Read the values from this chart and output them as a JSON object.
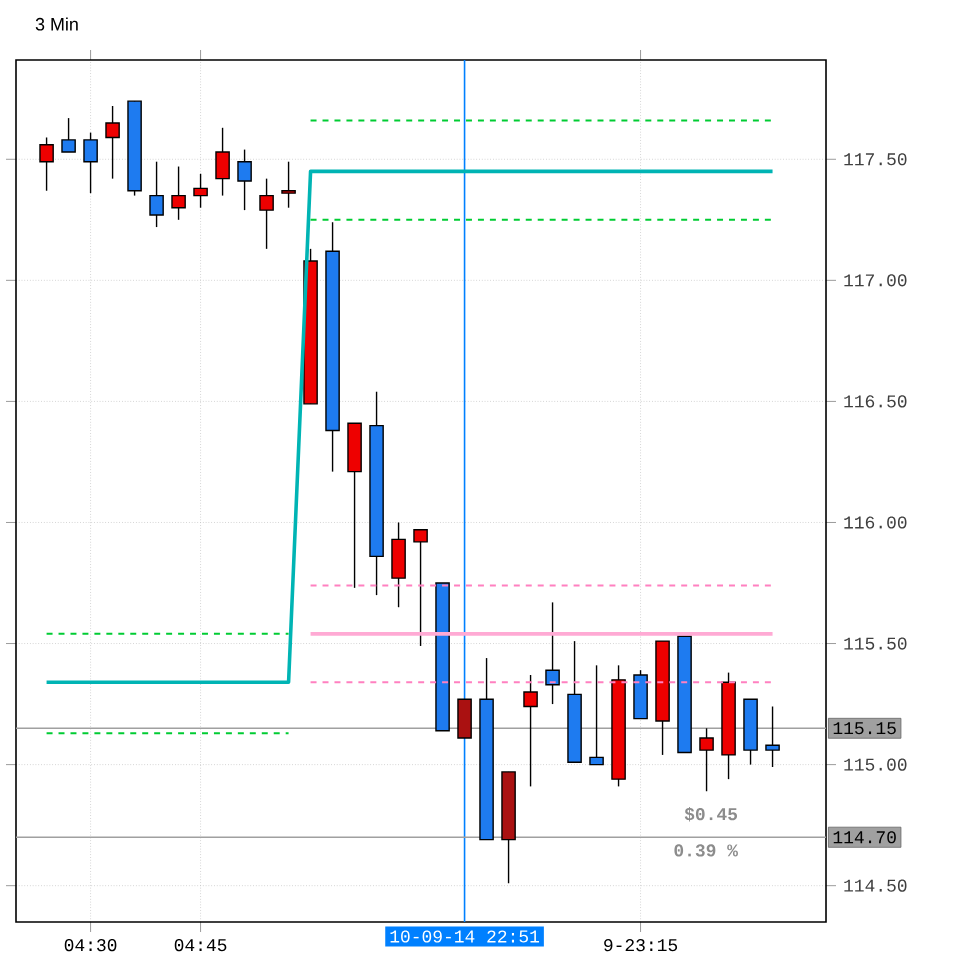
{
  "chart_data": {
    "type": "candlestick",
    "title": "3 Min",
    "categories": [
      null,
      null,
      "04:30",
      null,
      null,
      null,
      null,
      "04:45",
      null,
      null,
      null,
      null,
      null,
      null,
      null,
      null,
      null,
      null,
      null,
      "10-09-14 22:51",
      null,
      null,
      null,
      null,
      null,
      null,
      null,
      "9-23:15",
      null,
      null,
      null,
      null,
      null,
      null
    ],
    "ohlc": [
      [
        117.49,
        117.59,
        117.37,
        117.56
      ],
      [
        117.58,
        117.67,
        117.53,
        117.53
      ],
      [
        117.58,
        117.61,
        117.36,
        117.49
      ],
      [
        117.59,
        117.72,
        117.42,
        117.65
      ],
      [
        117.74,
        117.74,
        117.35,
        117.37
      ],
      [
        117.35,
        117.49,
        117.22,
        117.27
      ],
      [
        117.3,
        117.47,
        117.25,
        117.35
      ],
      [
        117.35,
        117.44,
        117.3,
        117.38
      ],
      [
        117.42,
        117.63,
        117.35,
        117.53
      ],
      [
        117.49,
        117.54,
        117.29,
        117.41
      ],
      [
        117.29,
        117.42,
        117.13,
        117.35
      ],
      [
        117.36,
        117.49,
        117.3,
        117.37
      ],
      [
        116.49,
        117.13,
        116.49,
        117.08
      ],
      [
        117.12,
        117.24,
        116.21,
        116.38
      ],
      [
        116.21,
        116.41,
        115.73,
        116.41
      ],
      [
        116.4,
        116.54,
        115.7,
        115.86
      ],
      [
        115.77,
        116.0,
        115.65,
        115.93
      ],
      [
        115.92,
        115.97,
        115.49,
        115.97
      ],
      [
        115.75,
        115.75,
        115.14,
        115.14
      ],
      [
        115.11,
        115.27,
        115.11,
        115.27
      ],
      [
        115.27,
        115.44,
        114.69,
        114.69
      ],
      [
        114.69,
        114.97,
        114.51,
        114.97
      ],
      [
        115.24,
        115.37,
        114.91,
        115.3
      ],
      [
        115.39,
        115.67,
        115.25,
        115.33
      ],
      [
        115.29,
        115.51,
        115.01,
        115.01
      ],
      [
        115.03,
        115.41,
        115.0,
        115.0
      ],
      [
        114.94,
        115.41,
        114.91,
        115.35
      ],
      [
        115.37,
        115.39,
        115.19,
        115.19
      ],
      [
        115.18,
        115.51,
        115.04,
        115.51
      ],
      [
        115.53,
        115.53,
        115.05,
        115.05
      ],
      [
        115.06,
        115.15,
        114.89,
        115.11
      ],
      [
        115.04,
        115.38,
        114.94,
        115.34
      ],
      [
        115.27,
        115.27,
        115.0,
        115.06
      ],
      [
        115.08,
        115.24,
        114.99,
        115.06
      ]
    ],
    "colors": [
      "#ee0000",
      "#1e7bf0",
      "#1e7bf0",
      "#ee0000",
      "#1e7bf0",
      "#1e7bf0",
      "#ee0000",
      "#ee0000",
      "#ee0000",
      "#1e7bf0",
      "#ee0000",
      "#ee0000",
      "#ee0000",
      "#1e7bf0",
      "#ee0000",
      "#1e7bf0",
      "#ee0000",
      "#ee0000",
      "#1e7bf0",
      "#aa1111",
      "#1e7bf0",
      "#aa1111",
      "#ee0000",
      "#1e7bf0",
      "#1e7bf0",
      "#1e7bf0",
      "#ee0000",
      "#1e7bf0",
      "#ee0000",
      "#1e7bf0",
      "#ee0000",
      "#ee0000",
      "#1e7bf0",
      "#1e7bf0"
    ],
    "series": [
      {
        "type": "line",
        "color": "#00b4b4",
        "line_style": "solid",
        "values": [
          115.34,
          115.34,
          115.34,
          115.34,
          115.34,
          115.34,
          115.34,
          115.34,
          115.34,
          115.34,
          115.34,
          115.34,
          117.45,
          117.45,
          117.45,
          117.45,
          117.45,
          117.45,
          117.45,
          117.45,
          117.45,
          117.45,
          117.45,
          117.45,
          117.45,
          117.45,
          117.45,
          117.45,
          117.45,
          117.45,
          117.45,
          117.45,
          117.45,
          117.45
        ]
      },
      {
        "type": "line",
        "color": "#ffaad4",
        "line_style": "solid",
        "values": [
          null,
          null,
          null,
          null,
          null,
          null,
          null,
          null,
          null,
          null,
          null,
          null,
          115.54,
          115.54,
          115.54,
          115.54,
          115.54,
          115.54,
          115.54,
          115.54,
          115.54,
          115.54,
          115.54,
          115.54,
          115.54,
          115.54,
          115.54,
          115.54,
          115.54,
          115.54,
          115.54,
          115.54,
          115.54,
          115.54
        ]
      },
      {
        "type": "line",
        "color": "#00cc33",
        "line_style": "dashed",
        "values": [
          null,
          null,
          null,
          null,
          null,
          null,
          null,
          null,
          null,
          null,
          null,
          null,
          117.66,
          117.66,
          117.66,
          117.66,
          117.66,
          117.66,
          117.66,
          117.66,
          117.66,
          117.66,
          117.66,
          117.66,
          117.66,
          117.66,
          117.66,
          117.66,
          117.66,
          117.66,
          117.66,
          117.66,
          117.66,
          117.66
        ]
      },
      {
        "type": "line",
        "color": "#00cc33",
        "line_style": "dashed",
        "values": [
          null,
          null,
          null,
          null,
          null,
          null,
          null,
          null,
          null,
          null,
          null,
          null,
          117.25,
          117.25,
          117.25,
          117.25,
          117.25,
          117.25,
          117.25,
          117.25,
          117.25,
          117.25,
          117.25,
          117.25,
          117.25,
          117.25,
          117.25,
          117.25,
          117.25,
          117.25,
          117.25,
          117.25,
          117.25,
          117.25
        ]
      },
      {
        "type": "line",
        "color": "#00cc33",
        "line_style": "dashed",
        "values": [
          115.54,
          115.54,
          115.54,
          115.54,
          115.54,
          115.54,
          115.54,
          115.54,
          115.54,
          115.54,
          115.54,
          115.54,
          null,
          null,
          null,
          null,
          null,
          null,
          null,
          null,
          null,
          null,
          null,
          null,
          null,
          null,
          null,
          null,
          null,
          null,
          null,
          null,
          null,
          null
        ]
      },
      {
        "type": "line",
        "color": "#00cc33",
        "line_style": "dashed",
        "values": [
          115.13,
          115.13,
          115.13,
          115.13,
          115.13,
          115.13,
          115.13,
          115.13,
          115.13,
          115.13,
          115.13,
          115.13,
          null,
          null,
          null,
          null,
          null,
          null,
          null,
          null,
          null,
          null,
          null,
          null,
          null,
          null,
          null,
          null,
          null,
          null,
          null,
          null,
          null,
          null
        ]
      },
      {
        "type": "line",
        "color": "#ff80c0",
        "line_style": "dashed",
        "values": [
          null,
          null,
          null,
          null,
          null,
          null,
          null,
          null,
          null,
          null,
          null,
          null,
          115.74,
          115.74,
          115.74,
          115.74,
          115.74,
          115.74,
          115.74,
          115.74,
          115.74,
          115.74,
          115.74,
          115.74,
          115.74,
          115.74,
          115.74,
          115.74,
          115.74,
          115.74,
          115.74,
          115.74,
          115.74,
          115.74
        ]
      },
      {
        "type": "line",
        "color": "#ff80c0",
        "line_style": "dashed",
        "values": [
          null,
          null,
          null,
          null,
          null,
          null,
          null,
          null,
          null,
          null,
          null,
          null,
          115.34,
          115.34,
          115.34,
          115.34,
          115.34,
          115.34,
          115.34,
          115.34,
          115.34,
          115.34,
          115.34,
          115.34,
          115.34,
          115.34,
          115.34,
          115.34,
          115.34,
          115.34,
          115.34,
          115.34,
          115.34,
          115.34
        ]
      }
    ],
    "ylim": [
      114.35,
      117.91
    ],
    "yticks": [
      {
        "value": 114.5,
        "label": "114.50"
      },
      {
        "value": 115,
        "label": "115.00"
      },
      {
        "value": 115.5,
        "label": "115.50"
      },
      {
        "value": 116,
        "label": "116.00"
      },
      {
        "value": 116.5,
        "label": "116.50"
      },
      {
        "value": 117,
        "label": "117.00"
      },
      {
        "value": 117.5,
        "label": "117.50"
      }
    ],
    "ref_lines": [
      {
        "axis": "x",
        "value": "10-09-14 22:51",
        "color": "#0080ff"
      },
      {
        "axis": "y",
        "value": 115.15,
        "label": "115.15",
        "color": "#a0a0a0"
      },
      {
        "axis": "y",
        "value": 114.7,
        "label": "114.70",
        "color": "#a0a0a0"
      }
    ],
    "annotations": [
      "$0.45",
      "0.39 %"
    ],
    "grid": true
  }
}
